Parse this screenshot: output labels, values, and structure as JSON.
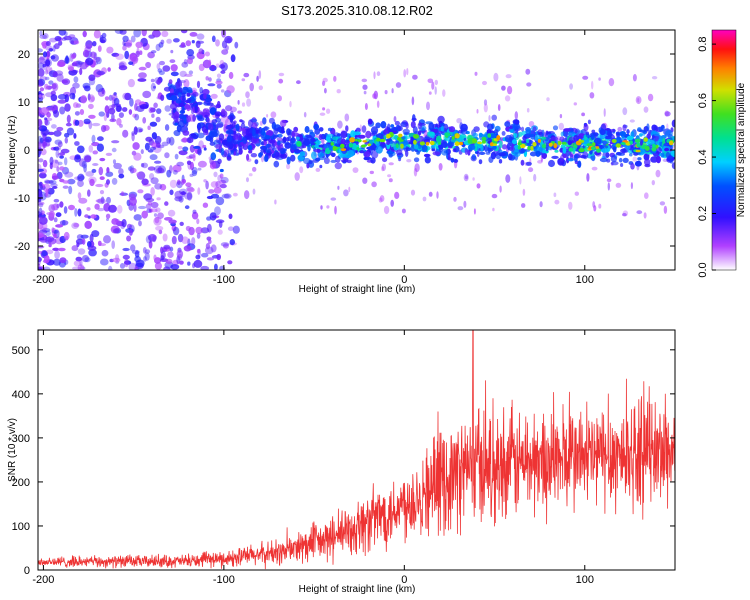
{
  "title": "S173.2025.310.08.12.R02",
  "chart_data": [
    {
      "type": "heatmap",
      "name": "spectrogram",
      "xlabel": "Height of straight line (km)",
      "ylabel": "Frequency (Hz)",
      "xlim": [
        -203,
        150
      ],
      "ylim": [
        -25,
        25
      ],
      "xticks": [
        -200,
        -100,
        0,
        100
      ],
      "yticks": [
        -20,
        -10,
        0,
        10,
        20
      ],
      "colorbar": {
        "label": "Normalized spectral amplitude",
        "range": [
          0.0,
          0.85
        ],
        "ticks": [
          "0.0",
          "0.2",
          "0.4",
          "0.6",
          "0.8"
        ]
      },
      "description_ridge": [
        {
          "x": -120,
          "y": 8
        },
        {
          "x": -100,
          "y": 3
        },
        {
          "x": -60,
          "y": 1
        },
        {
          "x": -30,
          "y": 1
        },
        {
          "x": -15,
          "y": 2
        },
        {
          "x": 0,
          "y": 2
        },
        {
          "x": 50,
          "y": 2
        },
        {
          "x": 100,
          "y": 1
        },
        {
          "x": 150,
          "y": 1
        }
      ]
    },
    {
      "type": "line",
      "name": "snr",
      "xlabel": "Height of straight line (km)",
      "ylabel": "SNR (10 * v/v)",
      "xlim": [
        -203,
        150
      ],
      "ylim": [
        0,
        545
      ],
      "xticks": [
        -200,
        -100,
        0,
        100
      ],
      "yticks": [
        0,
        100,
        200,
        300,
        400,
        500
      ],
      "color": "#ee3333",
      "envelope": [
        {
          "x": -203,
          "mean": 18,
          "spread": 12
        },
        {
          "x": -120,
          "mean": 20,
          "spread": 14
        },
        {
          "x": -100,
          "mean": 25,
          "spread": 18
        },
        {
          "x": -70,
          "mean": 40,
          "spread": 30
        },
        {
          "x": -40,
          "mean": 70,
          "spread": 50
        },
        {
          "x": -20,
          "mean": 110,
          "spread": 70
        },
        {
          "x": 0,
          "mean": 150,
          "spread": 80
        },
        {
          "x": 20,
          "mean": 200,
          "spread": 110
        },
        {
          "x": 40,
          "mean": 240,
          "spread": 130
        },
        {
          "x": 70,
          "mean": 245,
          "spread": 120
        },
        {
          "x": 100,
          "mean": 255,
          "spread": 120
        },
        {
          "x": 130,
          "mean": 265,
          "spread": 120
        },
        {
          "x": 150,
          "mean": 270,
          "spread": 120
        }
      ],
      "peak": {
        "x": 38,
        "y": 545
      }
    }
  ]
}
